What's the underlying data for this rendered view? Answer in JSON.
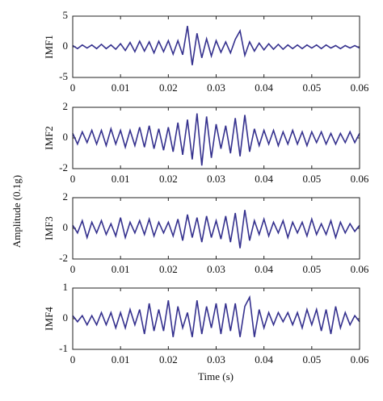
{
  "ylabel": "Amplitude (0.1g)",
  "xlabel": "Time (s)",
  "chart_data": [
    {
      "type": "line",
      "ylabel": "IMF1",
      "color": "#35318e",
      "xlim": [
        0,
        0.06
      ],
      "xticks": [
        0,
        0.01,
        0.02,
        0.03,
        0.04,
        0.05,
        0.06
      ],
      "ylim": [
        -5,
        5
      ],
      "yticks": [
        -5,
        0,
        5
      ],
      "x": [
        0,
        0.001,
        0.002,
        0.003,
        0.004,
        0.005,
        0.006,
        0.007,
        0.008,
        0.009,
        0.01,
        0.011,
        0.012,
        0.013,
        0.014,
        0.015,
        0.016,
        0.017,
        0.018,
        0.019,
        0.02,
        0.021,
        0.022,
        0.023,
        0.024,
        0.025,
        0.026,
        0.027,
        0.028,
        0.029,
        0.03,
        0.031,
        0.032,
        0.033,
        0.034,
        0.035,
        0.036,
        0.037,
        0.038,
        0.039,
        0.04,
        0.041,
        0.042,
        0.043,
        0.044,
        0.045,
        0.046,
        0.047,
        0.048,
        0.049,
        0.05,
        0.051,
        0.052,
        0.053,
        0.054,
        0.055,
        0.056,
        0.057,
        0.058,
        0.059,
        0.06
      ],
      "series": [
        {
          "values": [
            0.2,
            -0.3,
            0.3,
            -0.2,
            0.3,
            -0.3,
            0.4,
            -0.3,
            0.3,
            -0.4,
            0.5,
            -0.6,
            0.7,
            -0.8,
            0.9,
            -0.7,
            0.8,
            -1.0,
            0.9,
            -0.8,
            1.0,
            -1.2,
            1.0,
            -1.3,
            3.4,
            -3.0,
            2.2,
            -1.8,
            1.3,
            -1.5,
            1.0,
            -0.9,
            0.8,
            -1.0,
            1.2,
            2.6,
            -1.4,
            0.8,
            -0.7,
            0.6,
            -0.5,
            0.5,
            -0.4,
            0.4,
            -0.4,
            0.3,
            -0.3,
            0.3,
            -0.3,
            0.3,
            -0.2,
            0.3,
            -0.3,
            0.3,
            -0.2,
            0.2,
            -0.3,
            0.2,
            -0.2,
            0.2,
            -0.2
          ]
        }
      ]
    },
    {
      "type": "line",
      "ylabel": "IMF2",
      "color": "#35318e",
      "xlim": [
        0,
        0.06
      ],
      "xticks": [
        0,
        0.01,
        0.02,
        0.03,
        0.04,
        0.05,
        0.06
      ],
      "ylim": [
        -2,
        2
      ],
      "yticks": [
        -2,
        0,
        2
      ],
      "x": [
        0,
        0.001,
        0.002,
        0.003,
        0.004,
        0.005,
        0.006,
        0.007,
        0.008,
        0.009,
        0.01,
        0.011,
        0.012,
        0.013,
        0.014,
        0.015,
        0.016,
        0.017,
        0.018,
        0.019,
        0.02,
        0.021,
        0.022,
        0.023,
        0.024,
        0.025,
        0.026,
        0.027,
        0.028,
        0.029,
        0.03,
        0.031,
        0.032,
        0.033,
        0.034,
        0.035,
        0.036,
        0.037,
        0.038,
        0.039,
        0.04,
        0.041,
        0.042,
        0.043,
        0.044,
        0.045,
        0.046,
        0.047,
        0.048,
        0.049,
        0.05,
        0.051,
        0.052,
        0.053,
        0.054,
        0.055,
        0.056,
        0.057,
        0.058,
        0.059,
        0.06
      ],
      "series": [
        {
          "values": [
            0.3,
            -0.4,
            0.4,
            -0.3,
            0.5,
            -0.4,
            0.5,
            -0.5,
            0.6,
            -0.4,
            0.5,
            -0.6,
            0.5,
            -0.5,
            0.7,
            -0.6,
            0.8,
            -0.7,
            0.6,
            -0.8,
            0.7,
            -0.9,
            1.0,
            -1.1,
            1.2,
            -1.4,
            1.6,
            -1.8,
            1.4,
            -1.3,
            0.9,
            -0.7,
            0.8,
            -1.0,
            1.3,
            -1.2,
            1.5,
            -0.9,
            0.6,
            -0.5,
            0.5,
            -0.4,
            0.5,
            -0.5,
            0.4,
            -0.4,
            0.5,
            -0.4,
            0.4,
            -0.5,
            0.4,
            -0.3,
            0.4,
            -0.4,
            0.3,
            -0.4,
            0.3,
            -0.3,
            0.4,
            -0.3,
            0.3
          ]
        }
      ]
    },
    {
      "type": "line",
      "ylabel": "IMF3",
      "color": "#35318e",
      "xlim": [
        0,
        0.06
      ],
      "xticks": [
        0,
        0.01,
        0.02,
        0.03,
        0.04,
        0.05,
        0.06
      ],
      "ylim": [
        -2,
        2
      ],
      "yticks": [
        -2,
        0,
        2
      ],
      "x": [
        0,
        0.001,
        0.002,
        0.003,
        0.004,
        0.005,
        0.006,
        0.007,
        0.008,
        0.009,
        0.01,
        0.011,
        0.012,
        0.013,
        0.014,
        0.015,
        0.016,
        0.017,
        0.018,
        0.019,
        0.02,
        0.021,
        0.022,
        0.023,
        0.024,
        0.025,
        0.026,
        0.027,
        0.028,
        0.029,
        0.03,
        0.031,
        0.032,
        0.033,
        0.034,
        0.035,
        0.036,
        0.037,
        0.038,
        0.039,
        0.04,
        0.041,
        0.042,
        0.043,
        0.044,
        0.045,
        0.046,
        0.047,
        0.048,
        0.049,
        0.05,
        0.051,
        0.052,
        0.053,
        0.054,
        0.055,
        0.056,
        0.057,
        0.058,
        0.059,
        0.06
      ],
      "series": [
        {
          "values": [
            0.2,
            -0.3,
            0.5,
            -0.6,
            0.4,
            -0.3,
            0.5,
            -0.4,
            0.3,
            -0.5,
            0.7,
            -0.6,
            0.4,
            -0.3,
            0.5,
            -0.4,
            0.6,
            -0.5,
            0.4,
            -0.3,
            0.4,
            -0.5,
            0.6,
            -0.8,
            0.9,
            -0.6,
            0.7,
            -0.9,
            0.8,
            -0.6,
            0.5,
            -0.7,
            0.8,
            -0.9,
            1.0,
            -1.3,
            1.2,
            -0.8,
            0.5,
            -0.4,
            0.6,
            -0.5,
            0.4,
            -0.3,
            0.5,
            -0.6,
            0.4,
            -0.3,
            0.4,
            -0.5,
            0.6,
            -0.4,
            0.3,
            -0.4,
            0.5,
            -0.6,
            0.4,
            -0.3,
            0.3,
            -0.2,
            0.2
          ]
        }
      ]
    },
    {
      "type": "line",
      "ylabel": "IMF4",
      "color": "#35318e",
      "xlim": [
        0,
        0.06
      ],
      "xticks": [
        0,
        0.01,
        0.02,
        0.03,
        0.04,
        0.05,
        0.06
      ],
      "ylim": [
        -1,
        1
      ],
      "yticks": [
        -1,
        0,
        1
      ],
      "x": [
        0,
        0.001,
        0.002,
        0.003,
        0.004,
        0.005,
        0.006,
        0.007,
        0.008,
        0.009,
        0.01,
        0.011,
        0.012,
        0.013,
        0.014,
        0.015,
        0.016,
        0.017,
        0.018,
        0.019,
        0.02,
        0.021,
        0.022,
        0.023,
        0.024,
        0.025,
        0.026,
        0.027,
        0.028,
        0.029,
        0.03,
        0.031,
        0.032,
        0.033,
        0.034,
        0.035,
        0.036,
        0.037,
        0.038,
        0.039,
        0.04,
        0.041,
        0.042,
        0.043,
        0.044,
        0.045,
        0.046,
        0.047,
        0.048,
        0.049,
        0.05,
        0.051,
        0.052,
        0.053,
        0.054,
        0.055,
        0.056,
        0.057,
        0.058,
        0.059,
        0.06
      ],
      "series": [
        {
          "values": [
            0.1,
            -0.1,
            0.1,
            -0.2,
            0.1,
            -0.2,
            0.2,
            -0.2,
            0.2,
            -0.3,
            0.2,
            -0.3,
            0.3,
            -0.2,
            0.3,
            -0.5,
            0.5,
            -0.4,
            0.3,
            -0.4,
            0.6,
            -0.6,
            0.4,
            -0.3,
            0.2,
            -0.6,
            0.6,
            -0.5,
            0.4,
            -0.3,
            0.5,
            -0.5,
            0.5,
            -0.4,
            0.5,
            -0.6,
            0.4,
            0.7,
            -0.6,
            0.3,
            -0.3,
            0.2,
            -0.2,
            0.2,
            -0.1,
            0.2,
            -0.2,
            0.2,
            -0.3,
            0.3,
            -0.2,
            0.3,
            -0.4,
            0.3,
            -0.5,
            0.4,
            -0.3,
            0.2,
            -0.2,
            0.1,
            -0.1
          ]
        }
      ]
    }
  ]
}
